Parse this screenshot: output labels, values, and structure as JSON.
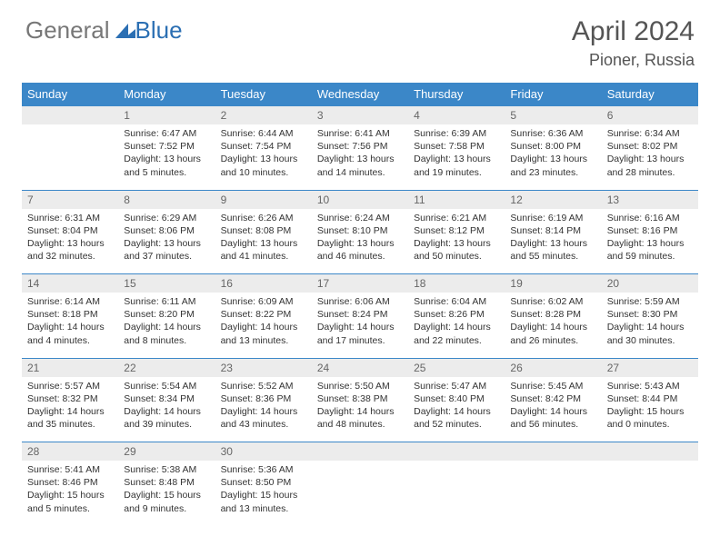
{
  "brand": {
    "part1": "General",
    "part2": "Blue"
  },
  "title": "April 2024",
  "location": "Pioner, Russia",
  "weekday_headers": [
    "Sunday",
    "Monday",
    "Tuesday",
    "Wednesday",
    "Thursday",
    "Friday",
    "Saturday"
  ],
  "colors": {
    "header_bg": "#3b87c8",
    "header_text": "#ffffff",
    "daynum_bg": "#ececec",
    "border": "#3b87c8",
    "logo_accent": "#2b6fb3"
  },
  "weeks": [
    {
      "nums": [
        "",
        "1",
        "2",
        "3",
        "4",
        "5",
        "6"
      ],
      "cells": [
        {
          "sunrise": "",
          "sunset": "",
          "daylight": ""
        },
        {
          "sunrise": "Sunrise: 6:47 AM",
          "sunset": "Sunset: 7:52 PM",
          "daylight": "Daylight: 13 hours and 5 minutes."
        },
        {
          "sunrise": "Sunrise: 6:44 AM",
          "sunset": "Sunset: 7:54 PM",
          "daylight": "Daylight: 13 hours and 10 minutes."
        },
        {
          "sunrise": "Sunrise: 6:41 AM",
          "sunset": "Sunset: 7:56 PM",
          "daylight": "Daylight: 13 hours and 14 minutes."
        },
        {
          "sunrise": "Sunrise: 6:39 AM",
          "sunset": "Sunset: 7:58 PM",
          "daylight": "Daylight: 13 hours and 19 minutes."
        },
        {
          "sunrise": "Sunrise: 6:36 AM",
          "sunset": "Sunset: 8:00 PM",
          "daylight": "Daylight: 13 hours and 23 minutes."
        },
        {
          "sunrise": "Sunrise: 6:34 AM",
          "sunset": "Sunset: 8:02 PM",
          "daylight": "Daylight: 13 hours and 28 minutes."
        }
      ]
    },
    {
      "nums": [
        "7",
        "8",
        "9",
        "10",
        "11",
        "12",
        "13"
      ],
      "cells": [
        {
          "sunrise": "Sunrise: 6:31 AM",
          "sunset": "Sunset: 8:04 PM",
          "daylight": "Daylight: 13 hours and 32 minutes."
        },
        {
          "sunrise": "Sunrise: 6:29 AM",
          "sunset": "Sunset: 8:06 PM",
          "daylight": "Daylight: 13 hours and 37 minutes."
        },
        {
          "sunrise": "Sunrise: 6:26 AM",
          "sunset": "Sunset: 8:08 PM",
          "daylight": "Daylight: 13 hours and 41 minutes."
        },
        {
          "sunrise": "Sunrise: 6:24 AM",
          "sunset": "Sunset: 8:10 PM",
          "daylight": "Daylight: 13 hours and 46 minutes."
        },
        {
          "sunrise": "Sunrise: 6:21 AM",
          "sunset": "Sunset: 8:12 PM",
          "daylight": "Daylight: 13 hours and 50 minutes."
        },
        {
          "sunrise": "Sunrise: 6:19 AM",
          "sunset": "Sunset: 8:14 PM",
          "daylight": "Daylight: 13 hours and 55 minutes."
        },
        {
          "sunrise": "Sunrise: 6:16 AM",
          "sunset": "Sunset: 8:16 PM",
          "daylight": "Daylight: 13 hours and 59 minutes."
        }
      ]
    },
    {
      "nums": [
        "14",
        "15",
        "16",
        "17",
        "18",
        "19",
        "20"
      ],
      "cells": [
        {
          "sunrise": "Sunrise: 6:14 AM",
          "sunset": "Sunset: 8:18 PM",
          "daylight": "Daylight: 14 hours and 4 minutes."
        },
        {
          "sunrise": "Sunrise: 6:11 AM",
          "sunset": "Sunset: 8:20 PM",
          "daylight": "Daylight: 14 hours and 8 minutes."
        },
        {
          "sunrise": "Sunrise: 6:09 AM",
          "sunset": "Sunset: 8:22 PM",
          "daylight": "Daylight: 14 hours and 13 minutes."
        },
        {
          "sunrise": "Sunrise: 6:06 AM",
          "sunset": "Sunset: 8:24 PM",
          "daylight": "Daylight: 14 hours and 17 minutes."
        },
        {
          "sunrise": "Sunrise: 6:04 AM",
          "sunset": "Sunset: 8:26 PM",
          "daylight": "Daylight: 14 hours and 22 minutes."
        },
        {
          "sunrise": "Sunrise: 6:02 AM",
          "sunset": "Sunset: 8:28 PM",
          "daylight": "Daylight: 14 hours and 26 minutes."
        },
        {
          "sunrise": "Sunrise: 5:59 AM",
          "sunset": "Sunset: 8:30 PM",
          "daylight": "Daylight: 14 hours and 30 minutes."
        }
      ]
    },
    {
      "nums": [
        "21",
        "22",
        "23",
        "24",
        "25",
        "26",
        "27"
      ],
      "cells": [
        {
          "sunrise": "Sunrise: 5:57 AM",
          "sunset": "Sunset: 8:32 PM",
          "daylight": "Daylight: 14 hours and 35 minutes."
        },
        {
          "sunrise": "Sunrise: 5:54 AM",
          "sunset": "Sunset: 8:34 PM",
          "daylight": "Daylight: 14 hours and 39 minutes."
        },
        {
          "sunrise": "Sunrise: 5:52 AM",
          "sunset": "Sunset: 8:36 PM",
          "daylight": "Daylight: 14 hours and 43 minutes."
        },
        {
          "sunrise": "Sunrise: 5:50 AM",
          "sunset": "Sunset: 8:38 PM",
          "daylight": "Daylight: 14 hours and 48 minutes."
        },
        {
          "sunrise": "Sunrise: 5:47 AM",
          "sunset": "Sunset: 8:40 PM",
          "daylight": "Daylight: 14 hours and 52 minutes."
        },
        {
          "sunrise": "Sunrise: 5:45 AM",
          "sunset": "Sunset: 8:42 PM",
          "daylight": "Daylight: 14 hours and 56 minutes."
        },
        {
          "sunrise": "Sunrise: 5:43 AM",
          "sunset": "Sunset: 8:44 PM",
          "daylight": "Daylight: 15 hours and 0 minutes."
        }
      ]
    },
    {
      "nums": [
        "28",
        "29",
        "30",
        "",
        "",
        "",
        ""
      ],
      "cells": [
        {
          "sunrise": "Sunrise: 5:41 AM",
          "sunset": "Sunset: 8:46 PM",
          "daylight": "Daylight: 15 hours and 5 minutes."
        },
        {
          "sunrise": "Sunrise: 5:38 AM",
          "sunset": "Sunset: 8:48 PM",
          "daylight": "Daylight: 15 hours and 9 minutes."
        },
        {
          "sunrise": "Sunrise: 5:36 AM",
          "sunset": "Sunset: 8:50 PM",
          "daylight": "Daylight: 15 hours and 13 minutes."
        },
        {
          "sunrise": "",
          "sunset": "",
          "daylight": ""
        },
        {
          "sunrise": "",
          "sunset": "",
          "daylight": ""
        },
        {
          "sunrise": "",
          "sunset": "",
          "daylight": ""
        },
        {
          "sunrise": "",
          "sunset": "",
          "daylight": ""
        }
      ]
    }
  ]
}
